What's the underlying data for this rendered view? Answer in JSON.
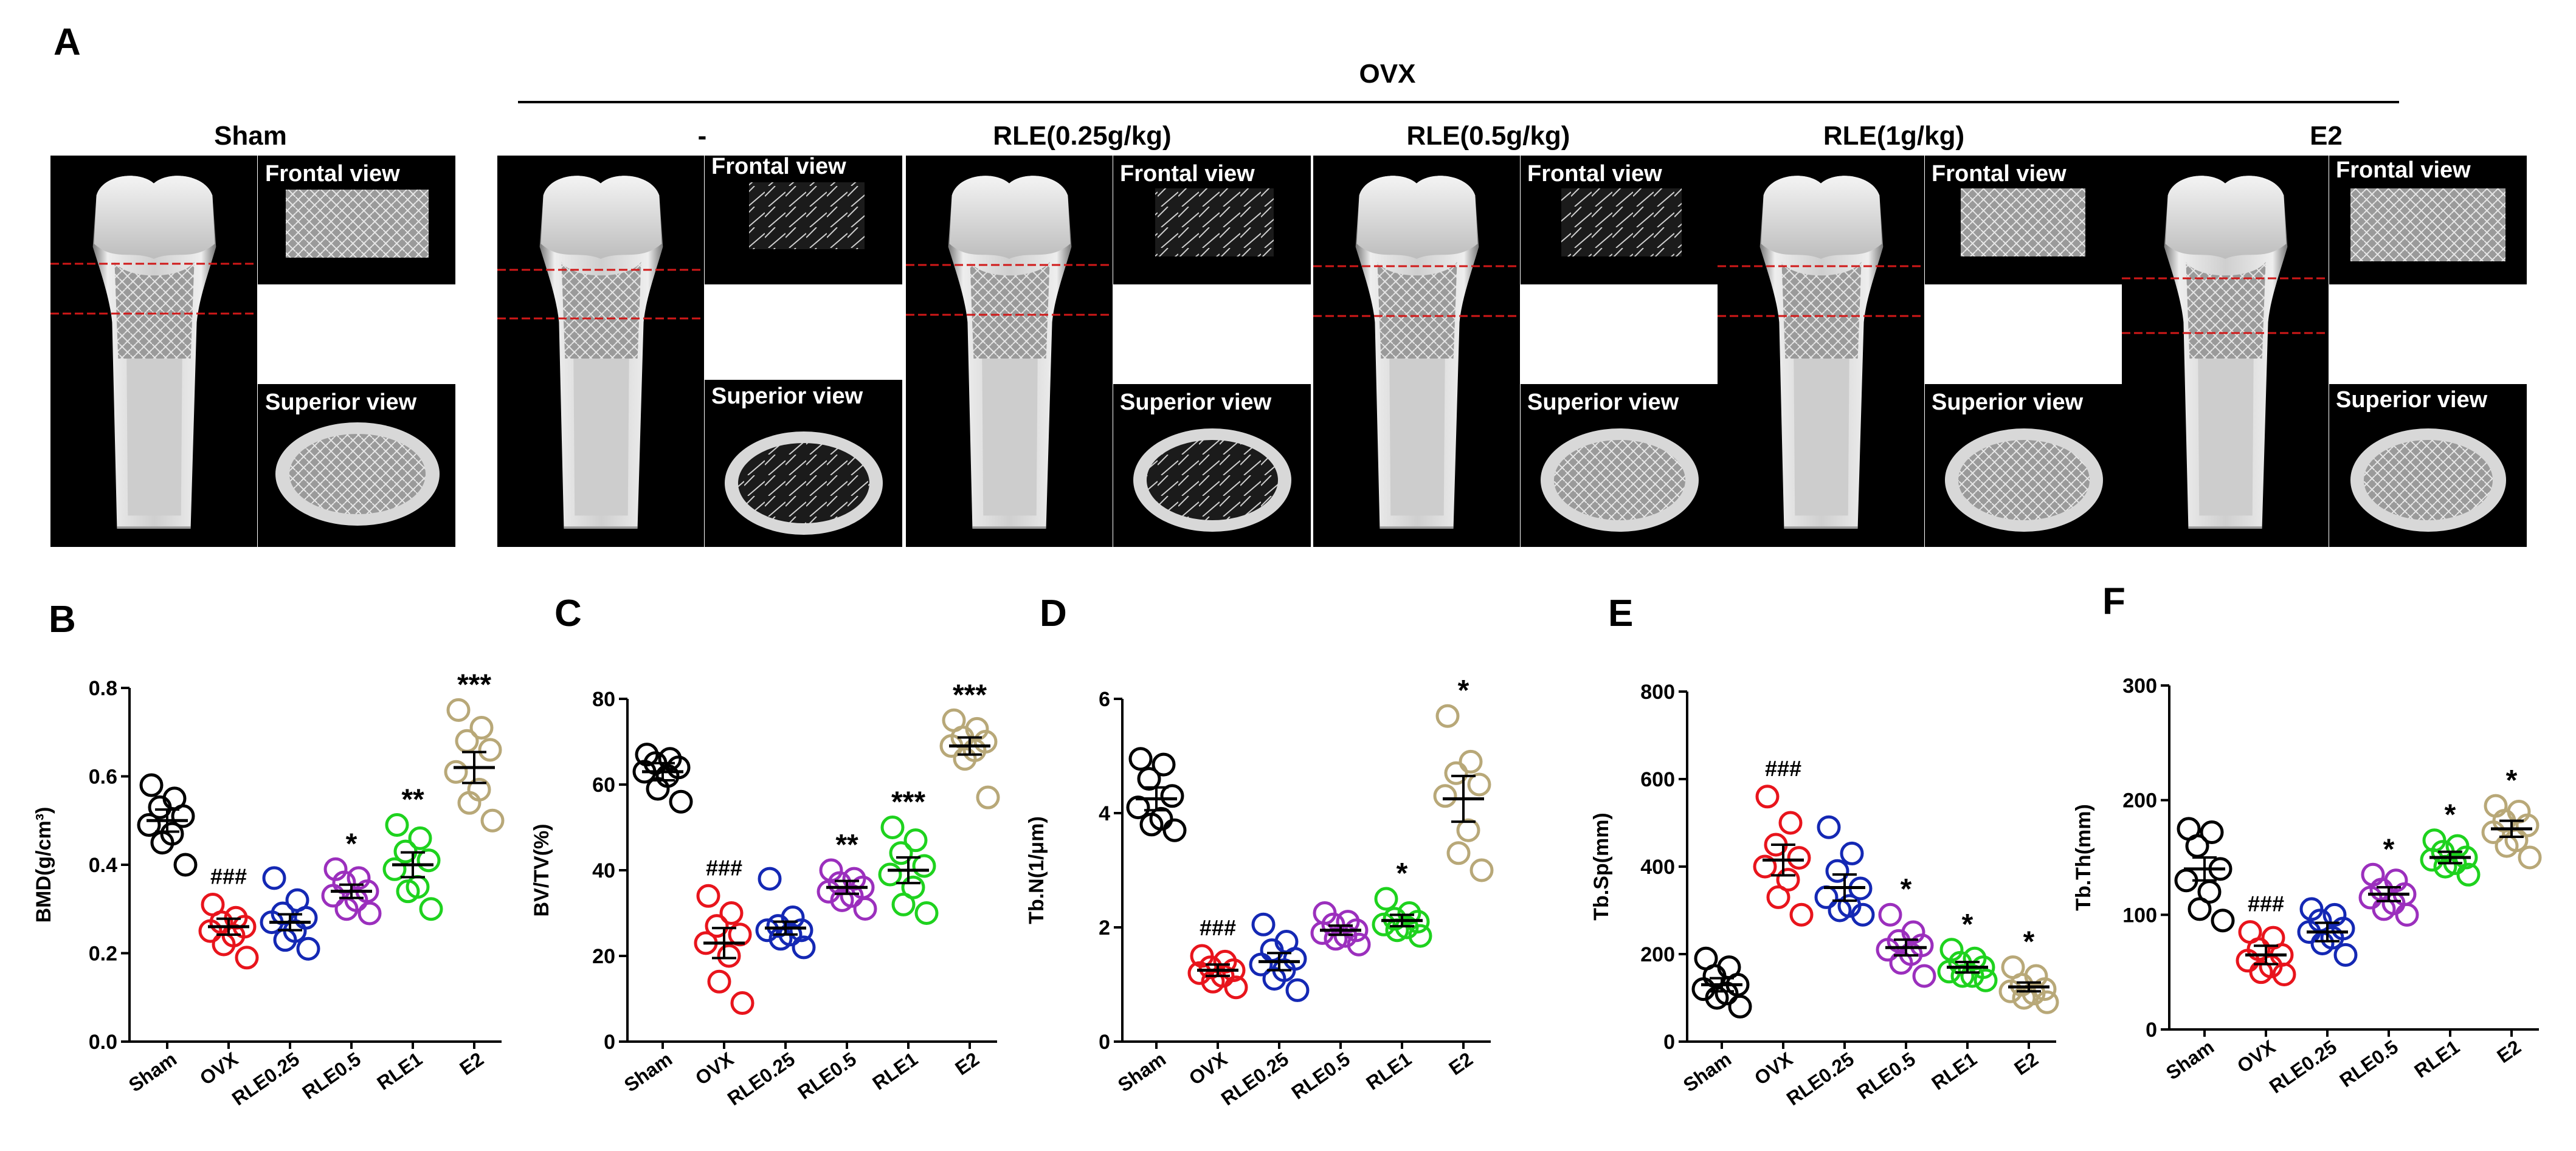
{
  "figure": {
    "panel_a": {
      "letter": "A",
      "ovx_header": "OVX",
      "groups": [
        {
          "title": "Sham"
        },
        {
          "title": "-"
        },
        {
          "title": "RLE(0.25g/kg)"
        },
        {
          "title": "RLE(0.5g/kg)"
        },
        {
          "title": "RLE(1g/kg)"
        },
        {
          "title": "E2"
        }
      ],
      "frontal_label": "Frontal view",
      "superior_label": "Superior view"
    }
  },
  "chart_data": [
    {
      "panel": "B",
      "type": "scatter",
      "ylabel": "BMD(g/cm³)",
      "categories": [
        "Sham",
        "OVX",
        "RLE0.25",
        "RLE0.5",
        "RLE1",
        "E2"
      ],
      "colors": [
        "#000000",
        "#e8141c",
        "#1428b4",
        "#9b2fbd",
        "#1ed21e",
        "#b8a878"
      ],
      "ylim": [
        0,
        0.8
      ],
      "yticks": [
        "0.0",
        "0.2",
        "0.4",
        "0.6",
        "0.8"
      ],
      "ytick_values": [
        0,
        0.2,
        0.4,
        0.6,
        0.8
      ],
      "means": [
        0.5,
        0.26,
        0.27,
        0.34,
        0.4,
        0.62
      ],
      "sems": [
        0.025,
        0.018,
        0.018,
        0.015,
        0.028,
        0.035
      ],
      "points": [
        [
          0.58,
          0.55,
          0.53,
          0.51,
          0.49,
          0.47,
          0.45,
          0.4
        ],
        [
          0.31,
          0.28,
          0.27,
          0.26,
          0.25,
          0.24,
          0.22,
          0.19
        ],
        [
          0.37,
          0.32,
          0.29,
          0.28,
          0.27,
          0.25,
          0.23,
          0.21
        ],
        [
          0.39,
          0.37,
          0.36,
          0.34,
          0.33,
          0.32,
          0.3,
          0.29
        ],
        [
          0.49,
          0.46,
          0.43,
          0.41,
          0.39,
          0.35,
          0.34,
          0.3
        ],
        [
          0.75,
          0.71,
          0.68,
          0.66,
          0.61,
          0.57,
          0.54,
          0.5
        ]
      ],
      "annotations": [
        "",
        "###",
        "",
        "*",
        "**",
        "***"
      ]
    },
    {
      "panel": "C",
      "type": "scatter",
      "ylabel": "BV/TV(%)",
      "categories": [
        "Sham",
        "OVX",
        "RLE0.25",
        "RLE0.5",
        "RLE1",
        "E2"
      ],
      "colors": [
        "#000000",
        "#e8141c",
        "#1428b4",
        "#9b2fbd",
        "#1ed21e",
        "#b8a878"
      ],
      "ylim": [
        0,
        80
      ],
      "yticks": [
        "0",
        "20",
        "40",
        "60",
        "80"
      ],
      "ytick_values": [
        0,
        20,
        40,
        60,
        80
      ],
      "means": [
        63,
        23,
        26.5,
        36,
        40,
        69
      ],
      "sems": [
        2.0,
        3.5,
        1.5,
        1.5,
        3.0,
        2.0
      ],
      "points": [
        [
          67,
          66,
          65,
          64,
          63,
          62,
          59,
          56
        ],
        [
          34,
          30,
          27,
          25,
          23,
          20,
          14,
          9
        ],
        [
          38,
          29,
          27,
          26,
          26,
          25,
          24,
          22
        ],
        [
          40,
          38,
          37,
          36,
          35,
          34,
          33,
          31
        ],
        [
          50,
          47,
          44,
          41,
          39,
          36,
          32,
          30
        ],
        [
          75,
          73,
          71,
          70,
          69,
          68,
          66,
          57
        ]
      ],
      "annotations": [
        "",
        "###",
        "",
        "**",
        "***",
        "***"
      ]
    },
    {
      "panel": "D",
      "type": "scatter",
      "ylabel": "Tb.N(1/μm)",
      "categories": [
        "Sham",
        "OVX",
        "RLE0.25",
        "RLE0.5",
        "RLE1",
        "E2"
      ],
      "colors": [
        "#000000",
        "#e8141c",
        "#1428b4",
        "#9b2fbd",
        "#1ed21e",
        "#b8a878"
      ],
      "ylim": [
        0,
        6
      ],
      "yticks": [
        "0",
        "2",
        "4",
        "6"
      ],
      "ytick_values": [
        0,
        2,
        4,
        6
      ],
      "means": [
        4.25,
        1.25,
        1.4,
        1.95,
        2.12,
        4.25
      ],
      "sems": [
        0.2,
        0.1,
        0.15,
        0.08,
        0.1,
        0.4
      ],
      "points": [
        [
          4.95,
          4.85,
          4.6,
          4.3,
          4.1,
          3.9,
          3.8,
          3.7
        ],
        [
          1.5,
          1.4,
          1.3,
          1.25,
          1.2,
          1.15,
          1.05,
          0.95
        ],
        [
          2.05,
          1.75,
          1.6,
          1.45,
          1.35,
          1.25,
          1.1,
          0.9
        ],
        [
          2.25,
          2.1,
          2.05,
          1.95,
          1.9,
          1.85,
          1.8,
          1.7
        ],
        [
          2.5,
          2.25,
          2.15,
          2.1,
          2.05,
          2.0,
          1.95,
          1.85
        ],
        [
          5.7,
          4.9,
          4.7,
          4.5,
          4.3,
          3.7,
          3.3,
          3.0
        ]
      ],
      "annotations": [
        "",
        "###",
        "",
        "",
        "*",
        "*"
      ]
    },
    {
      "panel": "E",
      "type": "scatter",
      "ylabel": "Tb.Sp(mm)",
      "categories": [
        "Sham",
        "OVX",
        "RLE0.25",
        "RLE0.5",
        "RLE1",
        "E2"
      ],
      "colors": [
        "#000000",
        "#e8141c",
        "#1428b4",
        "#9b2fbd",
        "#1ed21e",
        "#b8a878"
      ],
      "ylim": [
        0,
        800
      ],
      "yticks": [
        "0",
        "200",
        "400",
        "600",
        "800"
      ],
      "ytick_values": [
        0,
        200,
        400,
        600,
        800
      ],
      "means": [
        130,
        415,
        352,
        215,
        170,
        125
      ],
      "sems": [
        15,
        35,
        30,
        18,
        12,
        10
      ],
      "points": [
        [
          190,
          170,
          150,
          130,
          120,
          110,
          100,
          80
        ],
        [
          560,
          500,
          450,
          420,
          400,
          370,
          330,
          290
        ],
        [
          490,
          430,
          390,
          350,
          330,
          310,
          300,
          290
        ],
        [
          290,
          250,
          230,
          220,
          210,
          200,
          180,
          150
        ],
        [
          210,
          190,
          180,
          170,
          160,
          150,
          150,
          140
        ],
        [
          170,
          150,
          130,
          120,
          115,
          110,
          100,
          90
        ]
      ],
      "annotations": [
        "",
        "###",
        "",
        "*",
        "*",
        "*"
      ]
    },
    {
      "panel": "F",
      "type": "scatter",
      "ylabel": "Tb.Th(mm)",
      "categories": [
        "Sham",
        "OVX",
        "RLE0.25",
        "RLE0.5",
        "RLE1",
        "E2"
      ],
      "colors": [
        "#000000",
        "#e8141c",
        "#1428b4",
        "#9b2fbd",
        "#1ed21e",
        "#b8a878"
      ],
      "ylim": [
        0,
        300
      ],
      "yticks": [
        "0",
        "100",
        "200",
        "300"
      ],
      "ytick_values": [
        0,
        100,
        200,
        300
      ],
      "means": [
        140,
        65,
        85,
        118,
        150,
        175
      ],
      "sems": [
        10,
        8,
        8,
        6,
        5,
        7
      ],
      "points": [
        [
          175,
          172,
          160,
          140,
          130,
          120,
          105,
          95
        ],
        [
          85,
          80,
          70,
          65,
          60,
          55,
          50,
          48
        ],
        [
          105,
          100,
          95,
          88,
          85,
          80,
          75,
          65
        ],
        [
          135,
          130,
          122,
          118,
          115,
          110,
          105,
          100
        ],
        [
          165,
          160,
          155,
          150,
          148,
          145,
          142,
          135
        ],
        [
          195,
          190,
          182,
          178,
          172,
          165,
          160,
          150
        ]
      ],
      "annotations": [
        "",
        "###",
        "",
        "*",
        "*",
        "*"
      ]
    }
  ]
}
